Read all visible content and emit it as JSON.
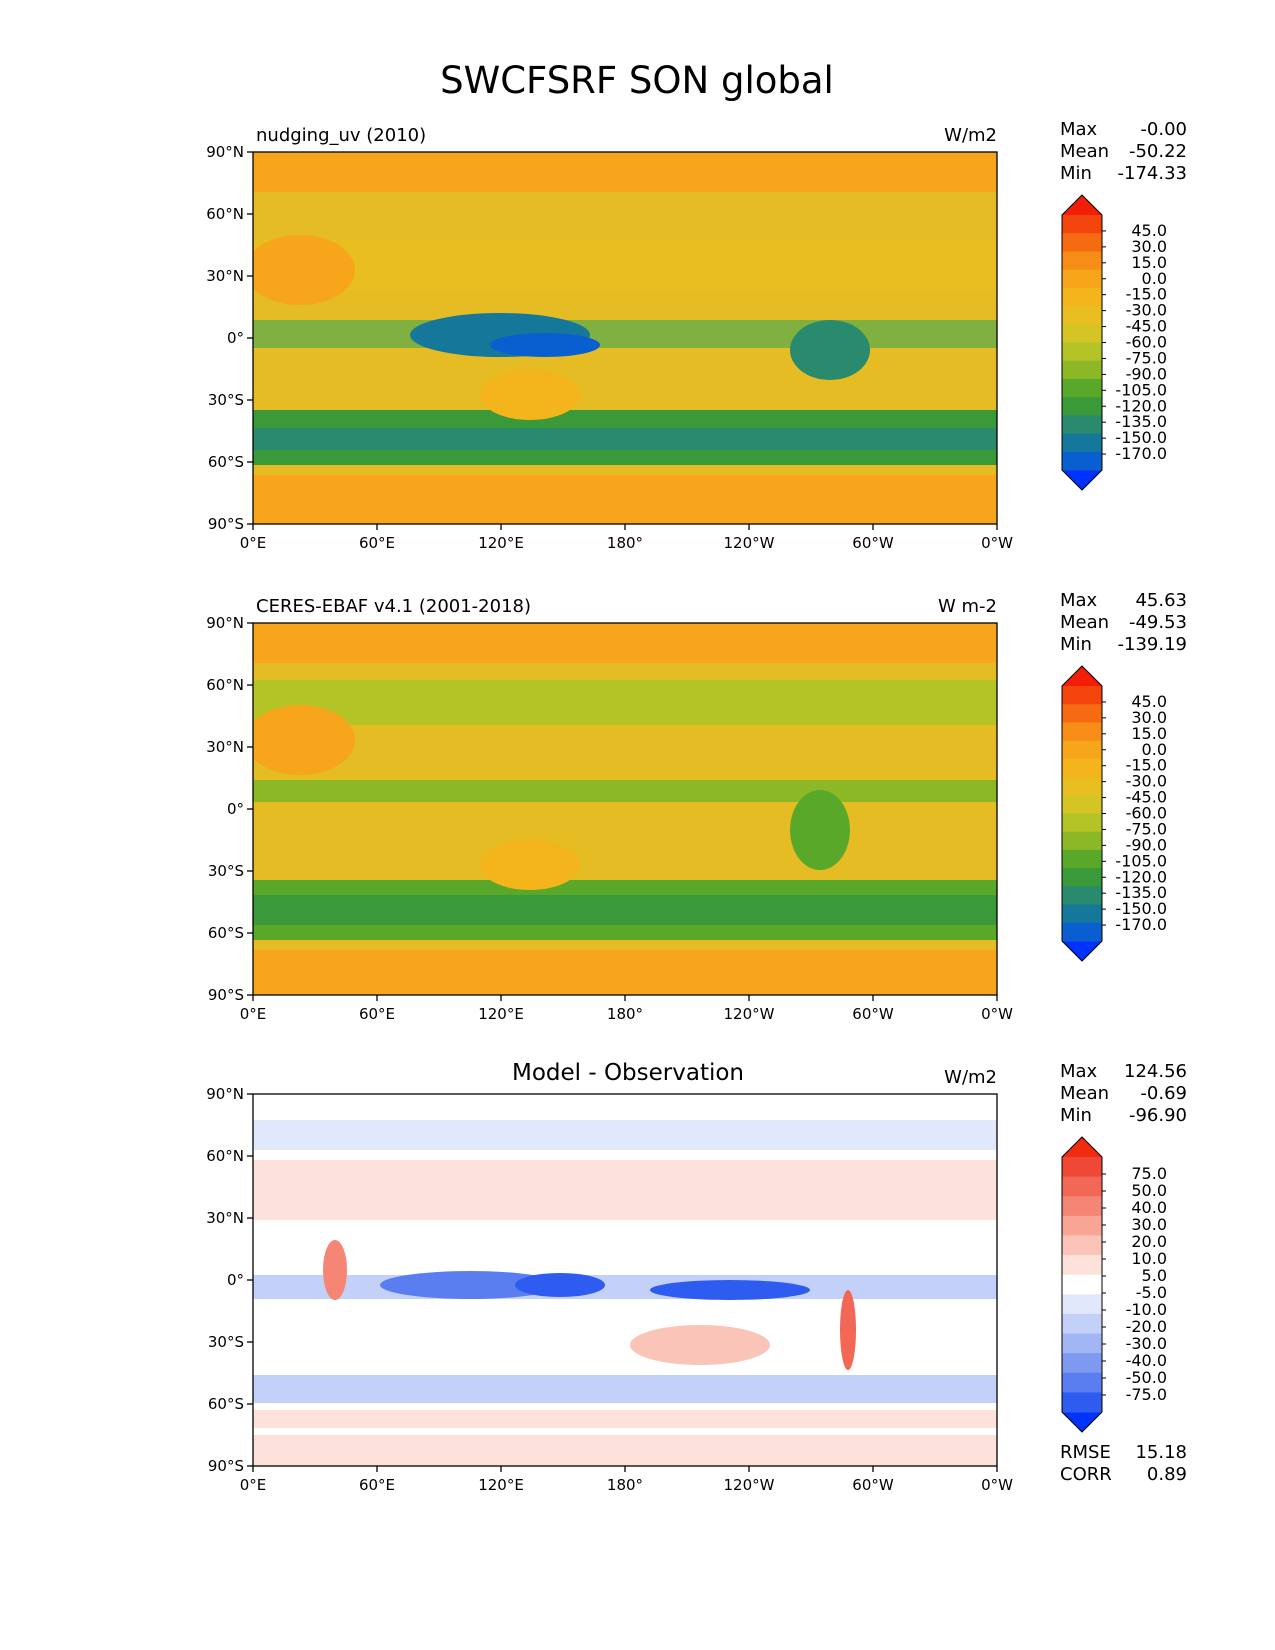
{
  "title": "SWCFSRF SON global",
  "x_ticks": [
    "0°E",
    "60°E",
    "120°E",
    "180°",
    "120°W",
    "60°W",
    "0°W"
  ],
  "y_ticks": [
    "90°N",
    "60°N",
    "30°N",
    "0°",
    "30°S",
    "60°S",
    "90°S"
  ],
  "panels": [
    {
      "left_title": "nudging_uv (2010)",
      "center_title": "",
      "units": "W/m2",
      "stats": [
        {
          "label": "Max",
          "value": "-0.00"
        },
        {
          "label": "Mean",
          "value": "-50.22"
        },
        {
          "label": "Min",
          "value": "-174.33"
        }
      ],
      "colorbar_labels": [
        "45.0",
        "30.0",
        "15.0",
        "0.0",
        "-15.0",
        "-30.0",
        "-45.0",
        "-60.0",
        "-75.0",
        "-90.0",
        "-105.0",
        "-120.0",
        "-135.0",
        "-150.0",
        "-170.0"
      ],
      "footer_stats": []
    },
    {
      "left_title": "CERES-EBAF v4.1 (2001-2018)",
      "center_title": "",
      "units": "W m-2",
      "stats": [
        {
          "label": "Max",
          "value": "45.63"
        },
        {
          "label": "Mean",
          "value": "-49.53"
        },
        {
          "label": "Min",
          "value": "-139.19"
        }
      ],
      "colorbar_labels": [
        "45.0",
        "30.0",
        "15.0",
        "0.0",
        "-15.0",
        "-30.0",
        "-45.0",
        "-60.0",
        "-75.0",
        "-90.0",
        "-105.0",
        "-120.0",
        "-135.0",
        "-150.0",
        "-170.0"
      ],
      "footer_stats": []
    },
    {
      "left_title": "",
      "center_title": "Model - Observation",
      "units": "W/m2",
      "stats": [
        {
          "label": "Max",
          "value": "124.56"
        },
        {
          "label": "Mean",
          "value": "-0.69"
        },
        {
          "label": "Min",
          "value": "-96.90"
        }
      ],
      "colorbar_labels": [
        "75.0",
        "50.0",
        "40.0",
        "30.0",
        "20.0",
        "10.0",
        "5.0",
        "-5.0",
        "-10.0",
        "-20.0",
        "-30.0",
        "-40.0",
        "-50.0",
        "-75.0"
      ],
      "footer_stats": [
        {
          "label": "RMSE",
          "value": "15.18"
        },
        {
          "label": "CORR",
          "value": "0.89"
        }
      ]
    }
  ],
  "colors": {
    "field_scale": [
      "#0032ff",
      "#0a5fd0",
      "#15789a",
      "#2a8a6e",
      "#3a9a3a",
      "#5aa82a",
      "#8cb828",
      "#b4c426",
      "#d4c424",
      "#e8be20",
      "#f4b41c",
      "#f7a51a",
      "#f78c16",
      "#f66a12",
      "#f4440e",
      "#f21e08"
    ],
    "diff_scale": [
      "#0033ff",
      "#2f5cf0",
      "#5a7ef0",
      "#7e99f0",
      "#a2b5f4",
      "#c3d0f8",
      "#e2e8fc",
      "#ffffff",
      "#fde2dc",
      "#fbc4b8",
      "#f8a596",
      "#f58676",
      "#f26756",
      "#f04836",
      "#f22a0e"
    ],
    "ocean_field_1": "#7db04a",
    "ocean_field_2": "#9bbd3a",
    "land_field": "#e2b82a",
    "polar_field": "#f7a51a",
    "diff_bg": "#ffffff"
  }
}
